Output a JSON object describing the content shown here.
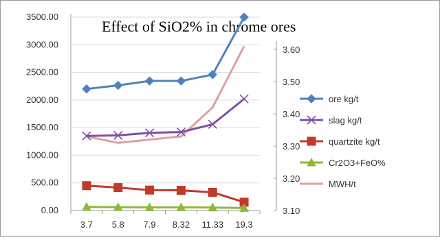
{
  "chart_data": {
    "type": "line",
    "title": "Effect of SiO2% in chrome ores",
    "categories": [
      "3.7",
      "5.8",
      "7.9",
      "8.32",
      "11.33",
      "19.3"
    ],
    "left_axis": {
      "ylim": [
        0,
        3500
      ],
      "ticks": [
        "0.00",
        "500.00",
        "1000.00",
        "1500.00",
        "2000.00",
        "2500.00",
        "3000.00",
        "3500.00"
      ]
    },
    "right_axis": {
      "ylim": [
        3.1,
        3.6
      ],
      "ticks": [
        "3.10",
        "3.20",
        "3.30",
        "3.40",
        "3.50",
        "3.60"
      ]
    },
    "series": [
      {
        "name": "ore kg/t",
        "axis": "left",
        "color": "#4f81bd",
        "marker": "diamond",
        "values": [
          2200,
          2265,
          2345,
          2345,
          2460,
          3500
        ]
      },
      {
        "name": "slag kg/t",
        "axis": "left",
        "color": "#7f4fa6",
        "marker": "x",
        "values": [
          1350,
          1360,
          1405,
          1420,
          1560,
          2020
        ]
      },
      {
        "name": "quartzite kg/t",
        "axis": "left",
        "color": "#c0392b",
        "marker": "square",
        "values": [
          450,
          415,
          370,
          365,
          330,
          150
        ]
      },
      {
        "name": "Cr2O3+FeO%",
        "axis": "left",
        "color": "#8fb83a",
        "marker": "triangle",
        "values": [
          65,
          60,
          58,
          58,
          55,
          45
        ]
      },
      {
        "name": "MWH/t",
        "axis": "right",
        "color": "#e0a0a0",
        "marker": "none",
        "values": [
          3.33,
          3.31,
          3.32,
          3.33,
          3.42,
          3.61
        ]
      }
    ],
    "grid": "horizontal",
    "legend_position": "right"
  }
}
